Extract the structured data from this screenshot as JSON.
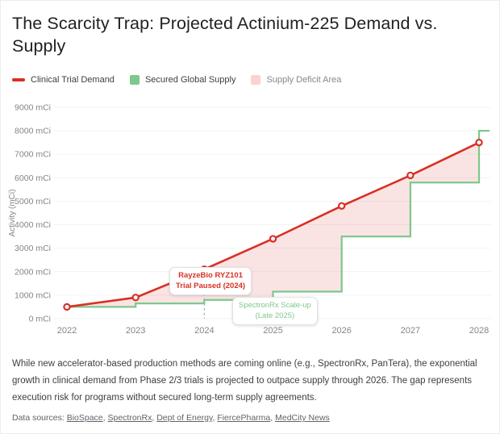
{
  "header": {
    "title": "The Scarcity Trap: Projected Actinium-225 Demand vs. Supply"
  },
  "legend": {
    "items": [
      {
        "label": "Clinical Trial Demand",
        "swatch": "line",
        "color": "#d93025"
      },
      {
        "label": "Secured Global Supply",
        "swatch": "square",
        "color": "#7ec88c"
      },
      {
        "label": "Supply Deficit Area",
        "swatch": "square",
        "color": "#f7d4d2"
      }
    ]
  },
  "chart_data": {
    "type": "line",
    "x_labels": [
      "2022",
      "2023",
      "2024",
      "2025",
      "2026",
      "2027",
      "2028"
    ],
    "series": [
      {
        "name": "Clinical Trial Demand",
        "type": "line",
        "color": "#d93025",
        "values": [
          500,
          900,
          2100,
          3400,
          4800,
          6100,
          7500
        ]
      },
      {
        "name": "Secured Global Supply",
        "type": "step-after",
        "color": "#7ec88c",
        "values": [
          500,
          650,
          800,
          1150,
          3500,
          5800,
          8000
        ]
      },
      {
        "name": "Supply Deficit Area",
        "type": "area-between",
        "between": [
          "Clinical Trial Demand",
          "Secured Global Supply"
        ],
        "color": "rgba(217,48,37,0.13)"
      }
    ],
    "ylabel": "Activity (mCi)",
    "ylim": [
      0,
      9000
    ],
    "yticks": [
      "0 mCi",
      "1000 mCi",
      "2000 mCi",
      "3000 mCi",
      "4000 mCi",
      "5000 mCi",
      "6000 mCi",
      "7000 mCi",
      "8000 mCi",
      "9000 mCi"
    ],
    "grid": true,
    "legend_position": "top",
    "annotations": [
      {
        "text_lines": [
          "RayzeBio RYZ101",
          "Trial Paused (2024)"
        ],
        "color": "#d93025",
        "x_label": "2024",
        "dashed_line_to_axis": true
      },
      {
        "text_lines": [
          "SpectronRx Scale-up",
          "(Late 2025)"
        ],
        "color": "#7ec88c",
        "x_label": "2025",
        "dashed_line_to_axis": false
      }
    ]
  },
  "footer": {
    "note": "While new accelerator-based production methods are coming online (e.g., SpectronRx, PanTera), the exponential growth in clinical demand from Phase 2/3 trials is projected to outpace supply through 2026. The gap represents execution risk for programs without secured long-term supply agreements.",
    "sources_label": "Data sources:",
    "sources": [
      {
        "label": "BioSpace"
      },
      {
        "label": "SpectronRx"
      },
      {
        "label": "Dept of Energy"
      },
      {
        "label": "FiercePharma"
      },
      {
        "label": "MedCity News"
      }
    ]
  }
}
